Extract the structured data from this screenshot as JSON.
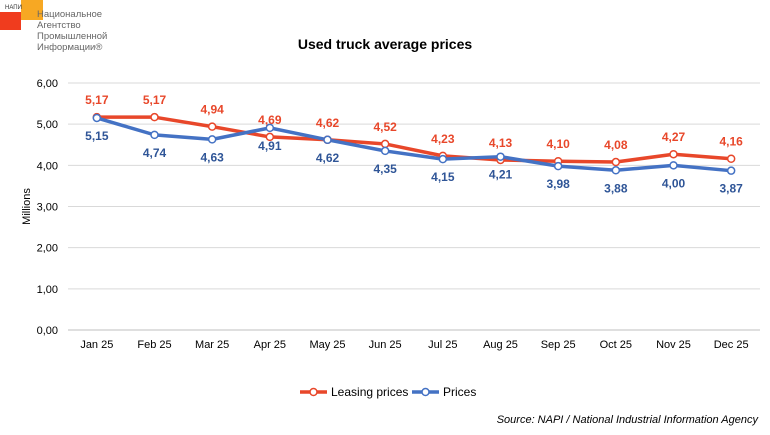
{
  "logo": {
    "abbr": "НАПИ",
    "name": "Национальное Агентство Промышленной Информации®"
  },
  "chart_data": {
    "type": "line",
    "title": "Used truck average prices",
    "ylabel": "Millions",
    "xlabel": "",
    "ylim": [
      0,
      6
    ],
    "yticks": [
      "0,00",
      "1,00",
      "2,00",
      "3,00",
      "4,00",
      "5,00",
      "6,00"
    ],
    "grid": true,
    "legend": "bottom",
    "categories": [
      "Jan 25",
      "Feb 25",
      "Mar 25",
      "Apr 25",
      "May 25",
      "Jun 25",
      "Jul 25",
      "Aug 25",
      "Sep 25",
      "Oct 25",
      "Nov 25",
      "Dec 25"
    ],
    "series": [
      {
        "name": "Leasing prices",
        "color": "#e8472a",
        "values": [
          5.17,
          5.17,
          4.94,
          4.69,
          4.62,
          4.52,
          4.23,
          4.13,
          4.1,
          4.08,
          4.27,
          4.16
        ],
        "labels": [
          "5,17",
          "5,17",
          "4,94",
          "4,69",
          "4,62",
          "4,52",
          "4,23",
          "4,13",
          "4,10",
          "4,08",
          "4,27",
          "4,16"
        ]
      },
      {
        "name": "Prices",
        "color": "#4472c4",
        "label_color": "#2f5597",
        "values": [
          5.15,
          4.74,
          4.63,
          4.91,
          4.62,
          4.35,
          4.15,
          4.21,
          3.98,
          3.88,
          4.0,
          3.87
        ],
        "labels": [
          "5,15",
          "4,74",
          "4,63",
          "4,91",
          "4,62",
          "4,35",
          "4,15",
          "4,21",
          "3,98",
          "3,88",
          "4,00",
          "3,87"
        ]
      }
    ]
  },
  "source": "Source: NAPI / National Industrial Information Agency"
}
